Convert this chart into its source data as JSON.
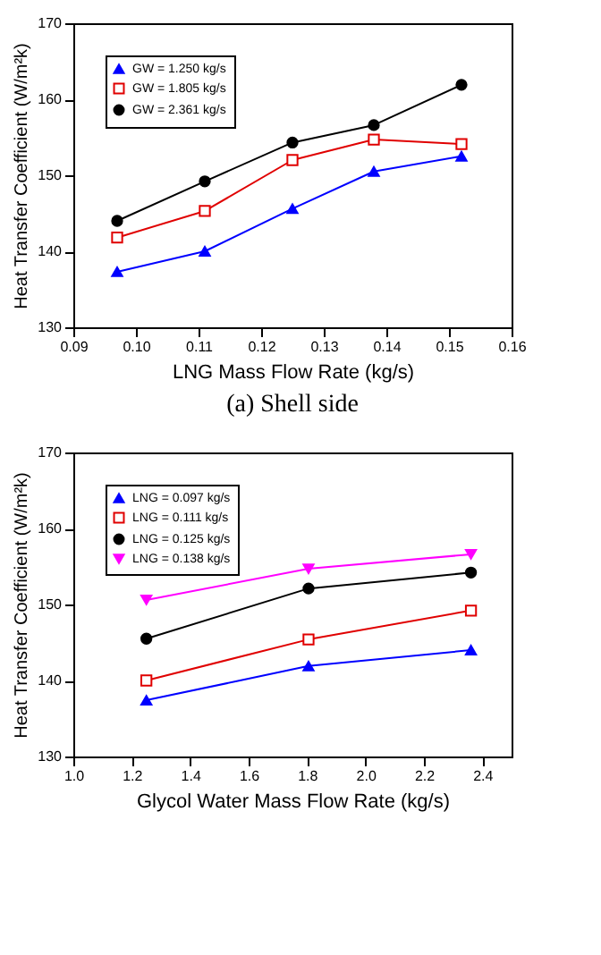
{
  "chart_data": [
    {
      "type": "line",
      "xlabel": "LNG Mass Flow Rate (kg/s)",
      "ylabel": "Heat Transfer Coefficient (W/m²k)",
      "annotations": [
        "(a)  Shell side"
      ],
      "legend": "top left",
      "x": [
        0.097,
        0.111,
        0.125,
        0.138,
        0.152
      ],
      "xlim": [
        0.09,
        0.16
      ],
      "xticks": [
        0.09,
        {
          "value": 0.1,
          "label": "0.10"
        },
        0.11,
        0.12,
        0.13,
        0.14,
        0.15,
        0.16
      ],
      "ylim": [
        130,
        170
      ],
      "yticks": [
        130,
        140,
        150,
        160,
        170
      ],
      "series": [
        {
          "name": "GW = 1.250 kg/s",
          "color": "#0000ff",
          "marker": "triangle",
          "values": [
            137.3,
            140.0,
            145.6,
            150.5,
            152.5
          ]
        },
        {
          "name": "GW = 1.805 kg/s",
          "color": "#e00000",
          "marker": "square",
          "values": [
            141.8,
            145.3,
            152.0,
            154.7,
            154.1
          ]
        },
        {
          "name": "GW = 2.361 kg/s",
          "color": "#000000",
          "marker": "circle",
          "values": [
            144.0,
            149.2,
            154.3,
            156.6,
            161.9
          ]
        }
      ]
    },
    {
      "type": "line",
      "xlabel": "Glycol Water Mass Flow Rate (kg/s)",
      "ylabel": "Heat Transfer Coefficient (W/m²k)",
      "legend": "top left",
      "x": [
        1.25,
        1.805,
        2.361
      ],
      "xlim": [
        1.0,
        2.5
      ],
      "xticks": [
        {
          "value": 1.0,
          "label": "1.0"
        },
        1.2,
        1.4,
        1.6,
        1.8,
        {
          "value": 2.0,
          "label": "2.0"
        },
        2.2,
        2.4
      ],
      "ylim": [
        130,
        170
      ],
      "yticks": [
        130,
        140,
        150,
        160,
        170
      ],
      "series": [
        {
          "name": "LNG = 0.097 kg/s",
          "color": "#0000ff",
          "marker": "triangle",
          "values": [
            137.4,
            141.9,
            144.0
          ]
        },
        {
          "name": "LNG = 0.111 kg/s",
          "color": "#e00000",
          "marker": "square",
          "values": [
            140.0,
            145.4,
            149.2
          ]
        },
        {
          "name": "LNG = 0.125 kg/s",
          "color": "#000000",
          "marker": "circle",
          "values": [
            145.5,
            152.1,
            154.2
          ]
        },
        {
          "name": "LNG = 0.138 kg/s",
          "color": "#ff00ff",
          "marker": "triangle-down",
          "values": [
            150.6,
            154.7,
            156.6
          ]
        }
      ]
    }
  ]
}
